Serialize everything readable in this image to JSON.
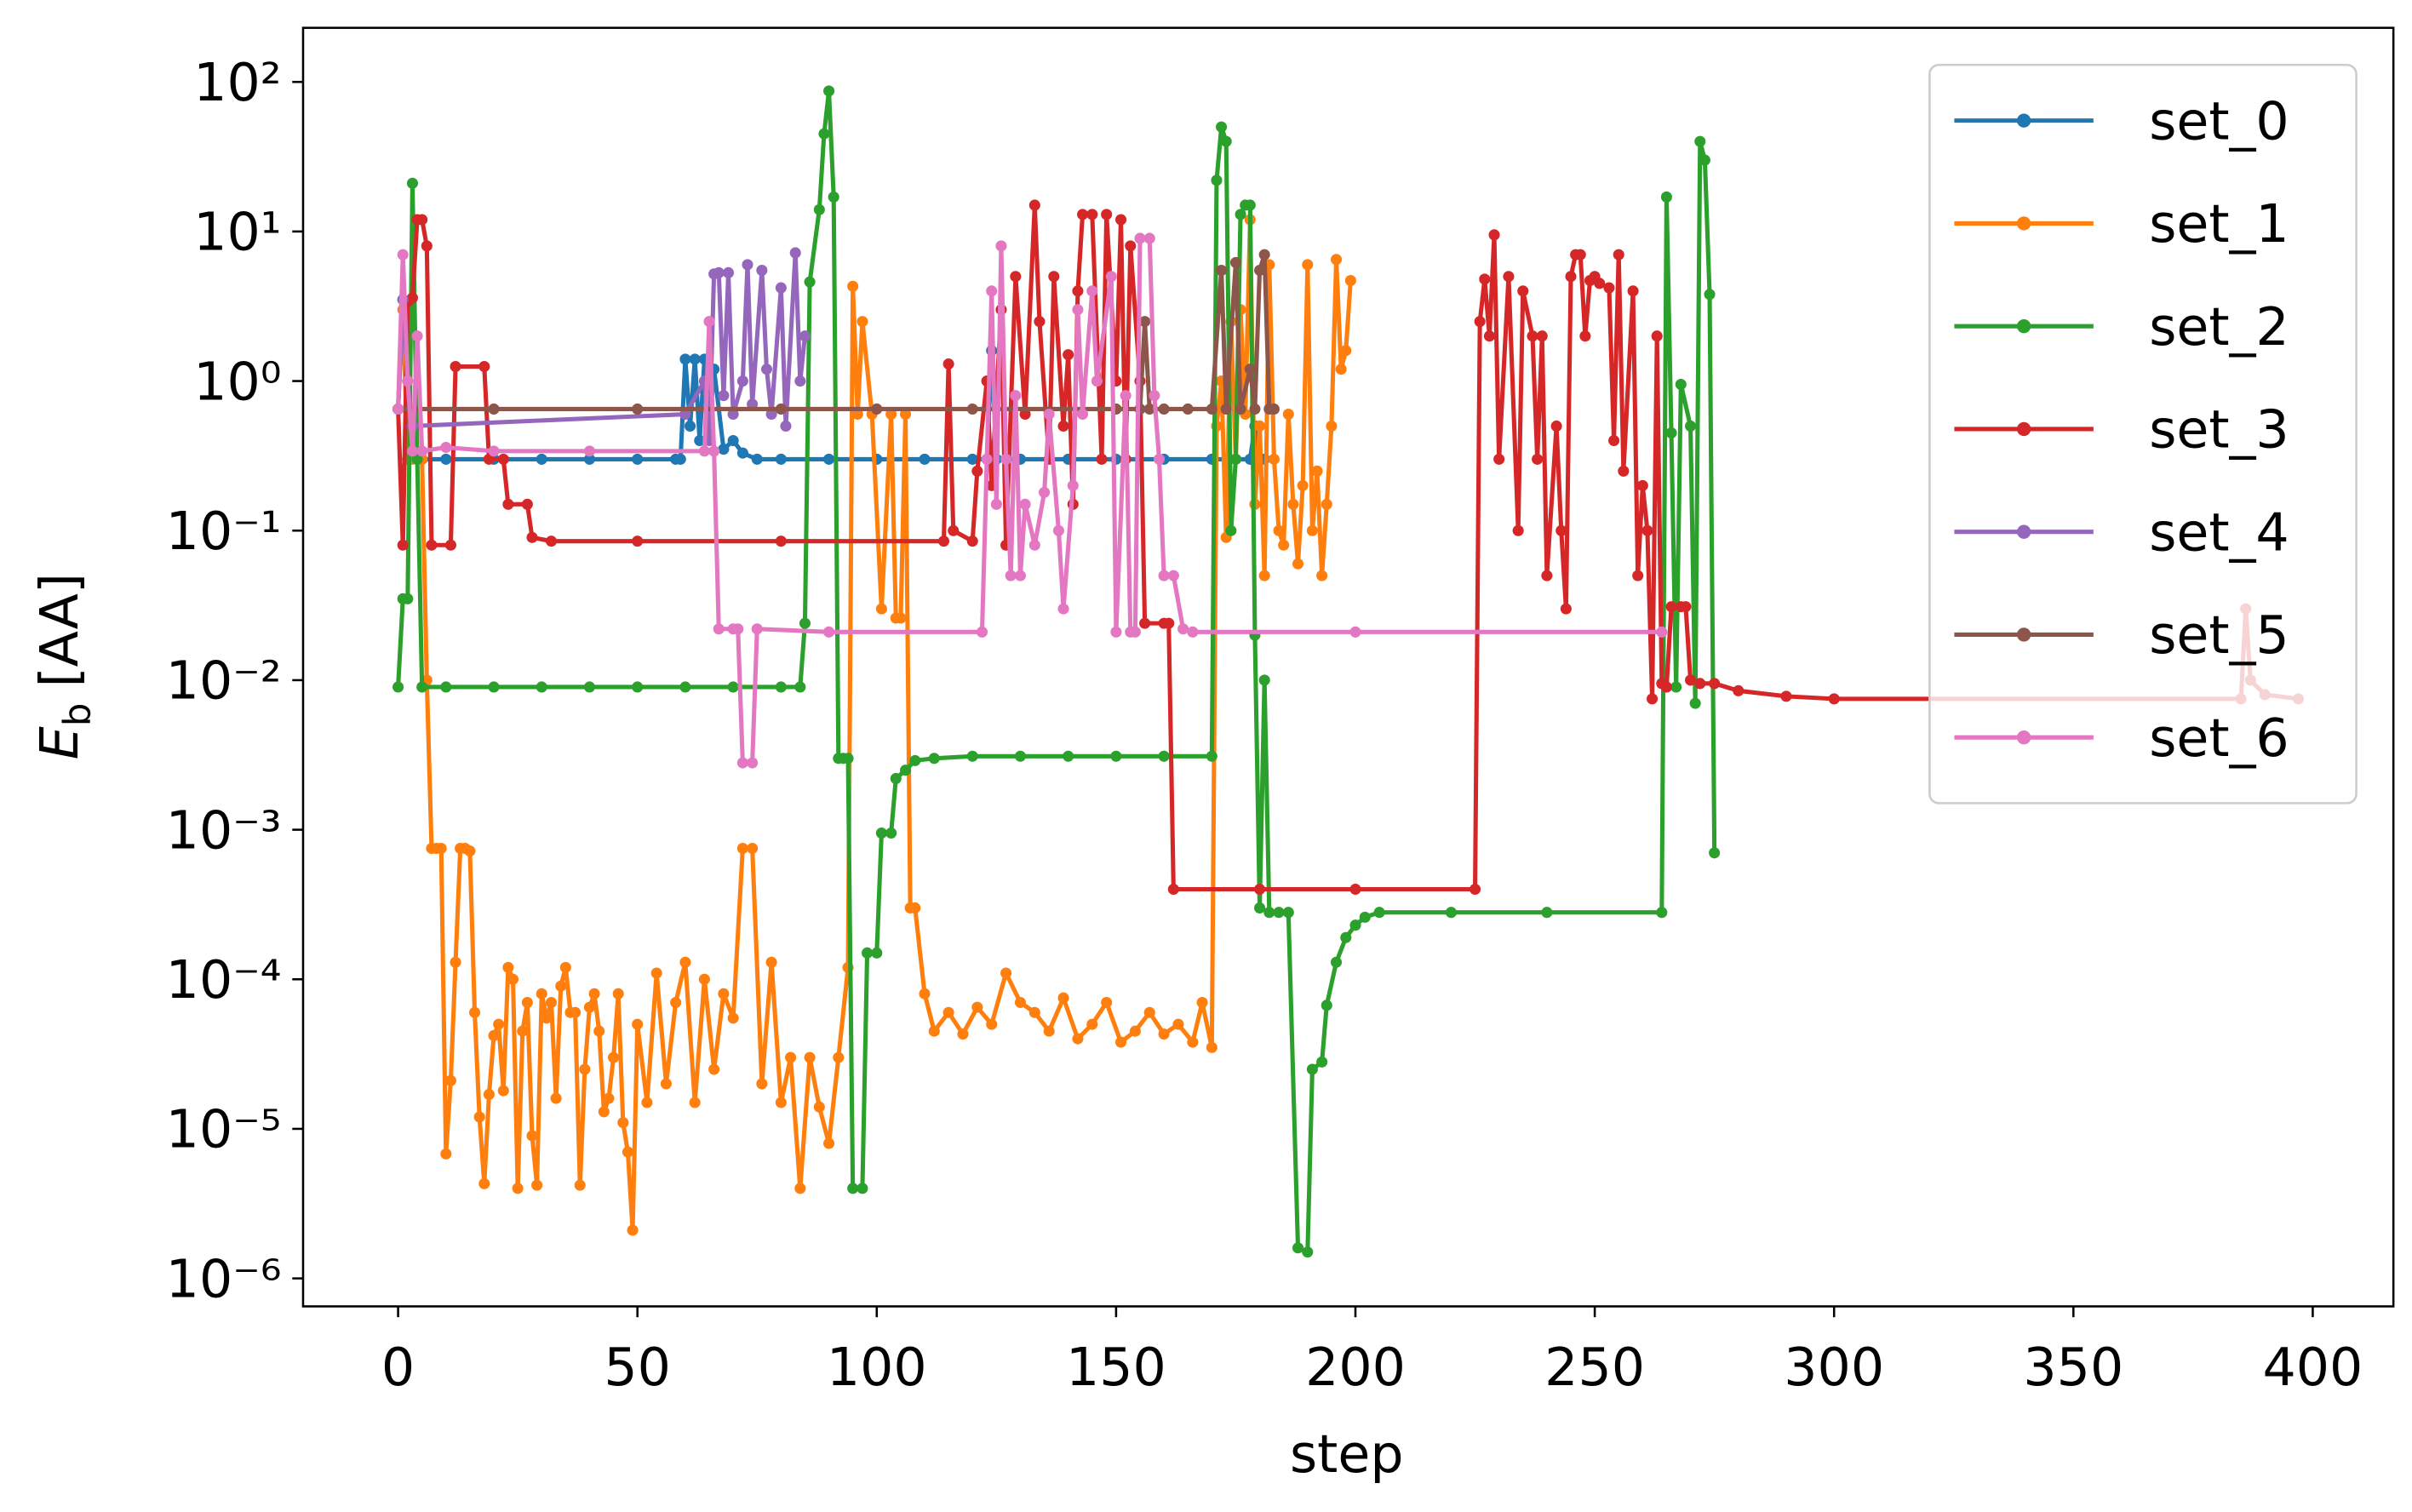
{
  "chart_data": {
    "type": "line",
    "xlabel": "step",
    "ylabel": {
      "symbol": "E",
      "subscript": "b",
      "unit": "[AA]"
    },
    "yscale": "log",
    "grid": false,
    "legend": "upper right",
    "xlim": [
      -19.85,
      416.85
    ],
    "ylim": [
      6.5e-07,
      230
    ],
    "xticks": [
      0,
      50,
      100,
      150,
      200,
      250,
      300,
      350,
      400
    ],
    "yticks": [
      {
        "value": 1e-06,
        "label": "10⁻⁶"
      },
      {
        "value": 1e-05,
        "label": "10⁻⁵"
      },
      {
        "value": 0.0001,
        "label": "10⁻⁴"
      },
      {
        "value": 0.001,
        "label": "10⁻³"
      },
      {
        "value": 0.01,
        "label": "10⁻²"
      },
      {
        "value": 0.1,
        "label": "10⁻¹"
      },
      {
        "value": 1,
        "label": "10⁰"
      },
      {
        "value": 10,
        "label": "10¹"
      },
      {
        "value": 100,
        "label": "10²"
      }
    ],
    "series": [
      {
        "name": "set_0",
        "color": "#1f77b4",
        "x": [
          0,
          1,
          2,
          5,
          10,
          20,
          30,
          40,
          50,
          58,
          59,
          60,
          61,
          62,
          63,
          64,
          65,
          66,
          68,
          70,
          72,
          75,
          80,
          90,
          100,
          110,
          120,
          123,
          124,
          125,
          130,
          140,
          150,
          160,
          170,
          175,
          178,
          179,
          180,
          181
        ],
        "values": [
          0.65,
          3.5,
          0.3,
          0.3,
          0.3,
          0.3,
          0.3,
          0.3,
          0.3,
          0.3,
          0.3,
          1.4,
          0.5,
          1.4,
          0.4,
          1.4,
          0.45,
          1.2,
          0.35,
          0.4,
          0.33,
          0.3,
          0.3,
          0.3,
          0.3,
          0.3,
          0.3,
          0.3,
          1.6,
          0.3,
          0.3,
          0.3,
          0.3,
          0.3,
          0.3,
          0.3,
          0.3,
          0.5,
          0.3,
          0.3
        ]
      },
      {
        "name": "set_1",
        "color": "#ff7f0e",
        "x": [
          0,
          1,
          2,
          3,
          4,
          5,
          6,
          7,
          8,
          9,
          10,
          11,
          12,
          13,
          14,
          15,
          16,
          17,
          18,
          19,
          20,
          21,
          22,
          23,
          24,
          25,
          26,
          27,
          28,
          29,
          30,
          31,
          32,
          33,
          34,
          35,
          36,
          37,
          38,
          39,
          40,
          41,
          42,
          43,
          44,
          45,
          46,
          47,
          48,
          49,
          50,
          52,
          54,
          56,
          58,
          60,
          62,
          64,
          66,
          68,
          70,
          72,
          74,
          76,
          78,
          80,
          82,
          84,
          86,
          88,
          90,
          92,
          94,
          95,
          96,
          97,
          99,
          101,
          103,
          104,
          105,
          106,
          107,
          108,
          110,
          112,
          115,
          118,
          121,
          124,
          127,
          130,
          133,
          136,
          139,
          142,
          145,
          148,
          151,
          154,
          157,
          160,
          163,
          166,
          168,
          170,
          171,
          172,
          173,
          174,
          175,
          176,
          177,
          178,
          179,
          180,
          181,
          182,
          183,
          184,
          185,
          186,
          187,
          188,
          189,
          190,
          191,
          192,
          193,
          194,
          195,
          196,
          197,
          198,
          199
        ],
        "values": [
          0.65,
          3.0,
          0.3,
          0.3,
          0.3,
          0.3,
          0.01,
          0.00075,
          0.00075,
          0.00075,
          6.8e-06,
          2.1e-05,
          0.00013,
          0.00075,
          0.00075,
          0.00072,
          6e-05,
          1.2e-05,
          4.3e-06,
          1.7e-05,
          4.2e-05,
          5e-05,
          1.8e-05,
          0.00012,
          0.0001,
          4e-06,
          4.5e-05,
          7e-05,
          9e-06,
          4.2e-06,
          8e-05,
          5.5e-05,
          7e-05,
          1.6e-05,
          9e-05,
          0.00012,
          6e-05,
          6e-05,
          4.2e-06,
          2.5e-05,
          6.5e-05,
          8e-05,
          4.5e-05,
          1.3e-05,
          1.6e-05,
          3e-05,
          8e-05,
          1.1e-05,
          7e-06,
          2.1e-06,
          5e-05,
          1.5e-05,
          0.00011,
          2e-05,
          7e-05,
          0.00013,
          1.5e-05,
          0.0001,
          2.5e-05,
          8e-05,
          5.5e-05,
          0.00075,
          0.00075,
          2e-05,
          0.00013,
          1.5e-05,
          3e-05,
          4e-06,
          3e-05,
          1.4e-05,
          8e-06,
          3e-05,
          0.00012,
          4.3,
          0.6,
          2.5,
          0.6,
          0.03,
          0.6,
          0.026,
          0.026,
          0.6,
          0.0003,
          0.0003,
          8e-05,
          4.5e-05,
          6e-05,
          4.3e-05,
          6.5e-05,
          5e-05,
          0.00011,
          7e-05,
          6e-05,
          4.5e-05,
          7.5e-05,
          4e-05,
          5e-05,
          7e-05,
          3.8e-05,
          4.5e-05,
          6e-05,
          4.3e-05,
          5e-05,
          3.8e-05,
          7e-05,
          3.5e-05,
          0.5,
          1.0,
          0.09,
          2.5,
          0.3,
          3.0,
          0.6,
          12,
          0.15,
          0.5,
          0.05,
          6,
          0.3,
          0.1,
          0.08,
          0.6,
          0.15,
          0.06,
          0.2,
          6,
          0.1,
          0.25,
          0.05,
          0.15,
          0.5,
          6.5,
          1.2,
          1.6,
          4.7
        ]
      },
      {
        "name": "set_2",
        "color": "#2ca02c",
        "x": [
          0,
          1,
          2,
          3,
          4,
          5,
          10,
          20,
          30,
          40,
          50,
          60,
          70,
          80,
          84,
          85,
          86,
          88,
          89,
          90,
          91,
          92,
          93,
          94,
          95,
          97,
          98,
          100,
          101,
          103,
          104,
          106,
          108,
          112,
          120,
          130,
          140,
          150,
          160,
          170,
          171,
          172,
          173,
          174,
          175,
          176,
          177,
          178,
          179,
          180,
          181,
          182,
          184,
          186,
          188,
          190,
          191,
          193,
          194,
          196,
          198,
          200,
          202,
          205,
          220,
          240,
          264,
          265,
          266,
          267,
          268,
          270,
          271,
          272,
          273,
          274,
          275
        ],
        "values": [
          0.009,
          0.035,
          0.035,
          21,
          0.3,
          0.009,
          0.009,
          0.009,
          0.009,
          0.009,
          0.009,
          0.009,
          0.009,
          0.009,
          0.009,
          0.024,
          4.6,
          14,
          45,
          87,
          17,
          0.003,
          0.003,
          0.003,
          4e-06,
          4e-06,
          0.00015,
          0.00015,
          0.00095,
          0.00095,
          0.0022,
          0.0025,
          0.0029,
          0.003,
          0.0031,
          0.0031,
          0.0031,
          0.0031,
          0.0031,
          0.0031,
          22,
          50,
          40,
          0.1,
          0.3,
          13,
          15,
          15,
          0.02,
          0.0003,
          0.01,
          0.00028,
          0.00028,
          0.00028,
          1.6e-06,
          1.5e-06,
          2.5e-05,
          2.8e-05,
          6.7e-05,
          0.00013,
          0.00019,
          0.00023,
          0.00026,
          0.00028,
          0.00028,
          0.00028,
          0.00028,
          17,
          0.45,
          0.009,
          0.95,
          0.5,
          0.007,
          40,
          30,
          3.8,
          0.0007
        ]
      },
      {
        "name": "set_3",
        "color": "#d62728",
        "x": [
          0,
          1,
          2,
          3,
          4,
          5,
          6,
          7,
          11,
          12,
          18,
          19,
          22,
          23,
          27,
          28,
          32,
          50,
          80,
          114,
          115,
          116,
          120,
          121,
          123,
          124,
          126,
          127,
          129,
          131,
          133,
          134,
          136,
          137,
          139,
          140,
          141,
          142,
          143,
          145,
          147,
          148,
          150,
          151,
          152,
          153,
          155,
          156,
          160,
          161,
          162,
          180,
          200,
          225,
          226,
          227,
          228,
          229,
          230,
          232,
          234,
          235,
          237,
          238,
          239,
          240,
          242,
          243,
          244,
          245,
          246,
          247,
          248,
          249,
          250,
          251,
          253,
          254,
          255,
          256,
          258,
          259,
          260,
          261,
          262,
          263,
          264,
          265,
          266,
          268,
          269,
          270,
          272,
          275,
          280,
          290,
          300,
          385,
          386,
          387,
          390,
          397
        ],
        "values": [
          0.65,
          0.08,
          3.4,
          3.6,
          12,
          12,
          8,
          0.08,
          0.08,
          1.25,
          1.25,
          0.3,
          0.3,
          0.15,
          0.15,
          0.09,
          0.085,
          0.085,
          0.085,
          0.085,
          1.3,
          0.1,
          0.085,
          0.25,
          1.0,
          0.2,
          3,
          0.08,
          5,
          0.6,
          15,
          2.5,
          0.3,
          5,
          0.5,
          1.5,
          0.15,
          4,
          13,
          13,
          0.3,
          13,
          1,
          12,
          0.3,
          8,
          1,
          0.024,
          0.024,
          0.024,
          0.0004,
          0.0004,
          0.0004,
          0.0004,
          2.5,
          4.8,
          2,
          9.5,
          0.3,
          5,
          0.1,
          4,
          2,
          0.3,
          2,
          0.05,
          0.5,
          0.1,
          0.03,
          5,
          7,
          7,
          2,
          4.7,
          5,
          4.5,
          4.2,
          0.4,
          7,
          0.25,
          4,
          0.05,
          0.2,
          0.1,
          0.0075,
          2,
          0.0095,
          0.009,
          0.031,
          0.031,
          0.031,
          0.01,
          0.0095,
          0.0095,
          0.0085,
          0.0078,
          0.0075,
          0.0075,
          0.03,
          0.01,
          0.008,
          0.0075
        ]
      },
      {
        "name": "set_4",
        "color": "#9467bd",
        "x": [
          0,
          1,
          2,
          3,
          60,
          64,
          65,
          66,
          67,
          68,
          69,
          70,
          72,
          73,
          74,
          76,
          77,
          78,
          80,
          81,
          83,
          84,
          85
        ],
        "values": [
          0.65,
          3.5,
          1.0,
          0.5,
          0.6,
          1.0,
          0.4,
          5.2,
          5.3,
          0.8,
          5.3,
          0.6,
          1.0,
          6,
          0.7,
          5.5,
          1.2,
          0.6,
          4.2,
          0.5,
          7.2,
          1,
          2
        ]
      },
      {
        "name": "set_5",
        "color": "#8c564b",
        "x": [
          0,
          20,
          50,
          80,
          100,
          120,
          150,
          155,
          156,
          157,
          160,
          165,
          170,
          172,
          173,
          175,
          176,
          178,
          179,
          180,
          181,
          182,
          183
        ],
        "values": [
          0.65,
          0.65,
          0.65,
          0.65,
          0.65,
          0.65,
          0.65,
          0.65,
          2.5,
          0.65,
          0.65,
          0.65,
          0.65,
          5.5,
          0.65,
          6.2,
          0.65,
          1.2,
          0.65,
          5.5,
          7,
          0.65,
          0.65
        ]
      },
      {
        "name": "set_6",
        "color": "#e377c2",
        "x": [
          0,
          1,
          2,
          3,
          4,
          5,
          10,
          20,
          40,
          64,
          65,
          66,
          67,
          70,
          71,
          72,
          74,
          75,
          90,
          122,
          123,
          124,
          125,
          126,
          127,
          128,
          129,
          130,
          131,
          133,
          135,
          136,
          138,
          139,
          141,
          142,
          143,
          145,
          146,
          149,
          150,
          152,
          153,
          154,
          155,
          157,
          158,
          159,
          160,
          162,
          164,
          166,
          200,
          264
        ],
        "values": [
          0.65,
          7,
          1,
          0.34,
          2,
          0.34,
          0.36,
          0.34,
          0.34,
          0.34,
          2.5,
          0.34,
          0.022,
          0.022,
          0.022,
          0.0028,
          0.0028,
          0.022,
          0.021,
          0.021,
          0.3,
          4,
          0.15,
          8,
          0.3,
          0.05,
          0.8,
          0.05,
          0.15,
          0.08,
          0.18,
          0.6,
          0.1,
          0.03,
          0.2,
          3,
          0.6,
          4,
          1,
          5,
          0.021,
          0.8,
          0.021,
          0.021,
          9,
          9,
          0.8,
          0.3,
          0.05,
          0.05,
          0.022,
          0.021,
          0.021,
          0.021
        ]
      }
    ]
  }
}
